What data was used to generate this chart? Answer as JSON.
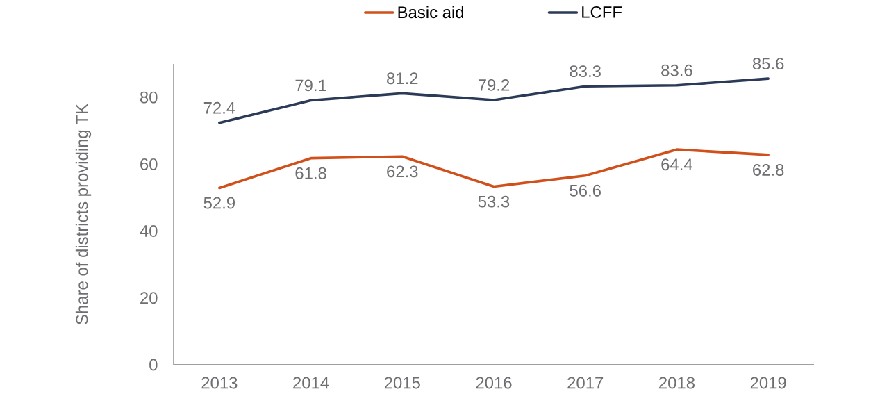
{
  "chart_data": {
    "type": "line",
    "ylabel": "Share of districts providing TK",
    "categories": [
      "2013",
      "2014",
      "2015",
      "2016",
      "2017",
      "2018",
      "2019"
    ],
    "series": [
      {
        "name": "Basic aid",
        "color": "#d0501c",
        "values": [
          52.9,
          61.8,
          62.3,
          53.3,
          56.6,
          64.4,
          62.8
        ]
      },
      {
        "name": "LCFF",
        "color": "#2b3a57",
        "values": [
          72.4,
          79.1,
          81.2,
          79.2,
          83.3,
          83.6,
          85.6
        ]
      }
    ],
    "ylim": [
      0,
      90
    ],
    "yticks": [
      0,
      20,
      40,
      60,
      80
    ],
    "data_labels": true,
    "legend": "top",
    "marker": "none"
  }
}
